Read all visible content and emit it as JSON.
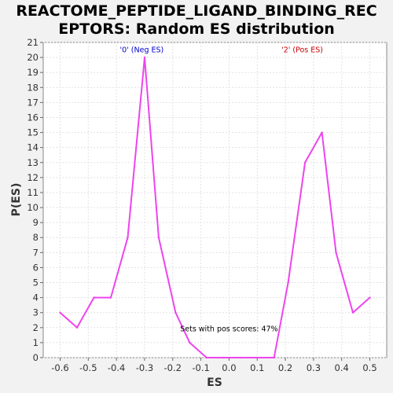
{
  "chart_data": {
    "type": "line",
    "title_lines": [
      "REACTOME_PEPTIDE_LIGAND_BINDING_REC",
      "EPTORS: Random ES distribution"
    ],
    "xlabel": "ES",
    "ylabel": "P(ES)",
    "xlim": [
      -0.66,
      0.56
    ],
    "ylim": [
      0,
      21
    ],
    "x_ticks": [
      -0.6,
      -0.5,
      -0.4,
      -0.3,
      -0.2,
      -0.1,
      0.0,
      0.1,
      0.2,
      0.3,
      0.4,
      0.5
    ],
    "x_tick_labels": [
      "-0.6",
      "-0.5",
      "-0.4",
      "-0.3",
      "-0.2",
      "-0.1",
      "0.0",
      "0.1",
      "0.2",
      "0.3",
      "0.4",
      "0.5"
    ],
    "y_ticks": [
      0,
      1,
      2,
      3,
      4,
      5,
      6,
      7,
      8,
      9,
      10,
      11,
      12,
      13,
      14,
      15,
      16,
      17,
      18,
      19,
      20,
      21
    ],
    "y_tick_labels": [
      "0",
      "1",
      "2",
      "3",
      "4",
      "5",
      "6",
      "7",
      "8",
      "9",
      "10",
      "11",
      "12",
      "13",
      "14",
      "15",
      "16",
      "17",
      "18",
      "19",
      "20",
      "21"
    ],
    "grid": true,
    "series": [
      {
        "color": "#ee44ee",
        "x": [
          -0.6,
          -0.54,
          -0.48,
          -0.42,
          -0.36,
          -0.3,
          -0.25,
          -0.19,
          -0.14,
          -0.08,
          -0.02,
          0.04,
          0.1,
          0.16,
          0.21,
          0.27,
          0.33,
          0.38,
          0.44,
          0.5
        ],
        "y": [
          3,
          2,
          4,
          4,
          8,
          20,
          8,
          3,
          1,
          0,
          0,
          0,
          0,
          0,
          5,
          13,
          15,
          7,
          3,
          4
        ]
      }
    ],
    "annotations": [
      {
        "text": "'0' (Neg ES)",
        "x": -0.31,
        "y": 20.5,
        "color": "#0000cc"
      },
      {
        "text": "'2' (Pos ES)",
        "x": 0.26,
        "y": 20.5,
        "color": "#cc0000"
      },
      {
        "text": "Sets with pos scores: 47%",
        "x": 0.0,
        "y": 1.9,
        "color": "#000000"
      }
    ]
  }
}
